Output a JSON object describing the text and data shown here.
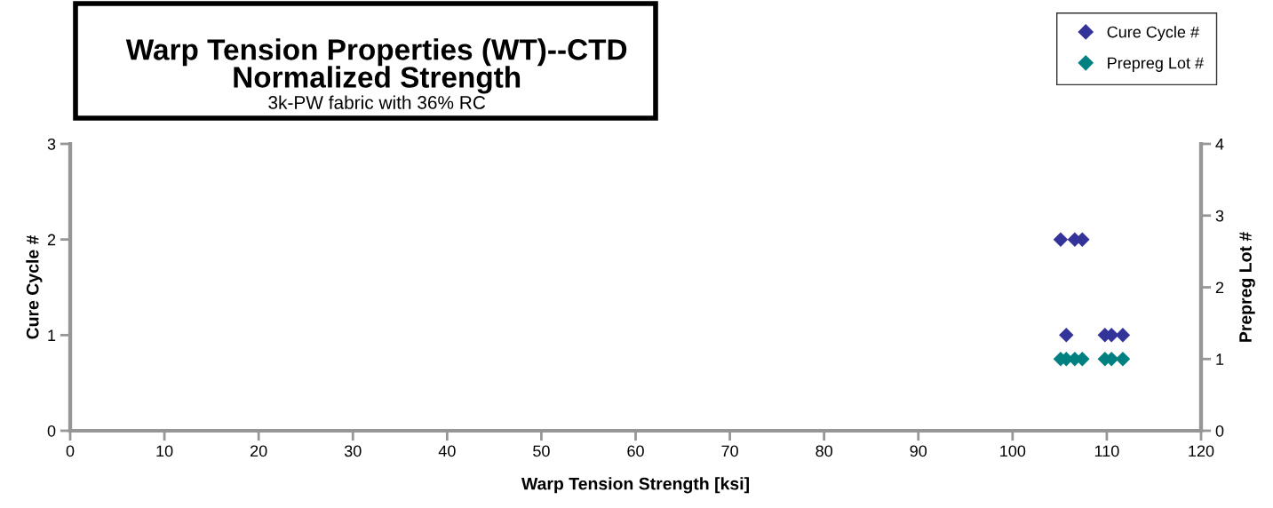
{
  "chart_data": {
    "type": "scatter",
    "title": "Warp Tension Properties (WT)--CTD\nNormalized Strength",
    "subtitle": "3k-PW fabric with 36% RC",
    "xlabel": "Warp Tension Strength [ksi]",
    "ylabel": "Cure Cycle #",
    "y2label": "Prepreg Lot #",
    "x": [
      105.1,
      105.7,
      106.6,
      107.4,
      109.8,
      110.5,
      111.7
    ],
    "series": [
      {
        "name": "Cure Cycle #",
        "color": "#333399",
        "values": [
          2,
          1,
          2,
          2,
          1,
          1,
          1
        ]
      },
      {
        "name": "Prepreg Lot #",
        "color": "#008080",
        "values": [
          1,
          1,
          1,
          1,
          1,
          1,
          1
        ],
        "axis": "y2"
      }
    ],
    "xlim": [
      0,
      120
    ],
    "xticks": [
      0,
      10,
      20,
      30,
      40,
      50,
      60,
      70,
      80,
      90,
      100,
      110,
      120
    ],
    "ylim": [
      0,
      3
    ],
    "yticks": [
      0,
      1,
      2,
      3
    ],
    "y2lim": [
      0,
      4
    ],
    "y2ticks": [
      0,
      1,
      2,
      3,
      4
    ],
    "marker": "diamond",
    "grid": false,
    "legend": "top right"
  }
}
